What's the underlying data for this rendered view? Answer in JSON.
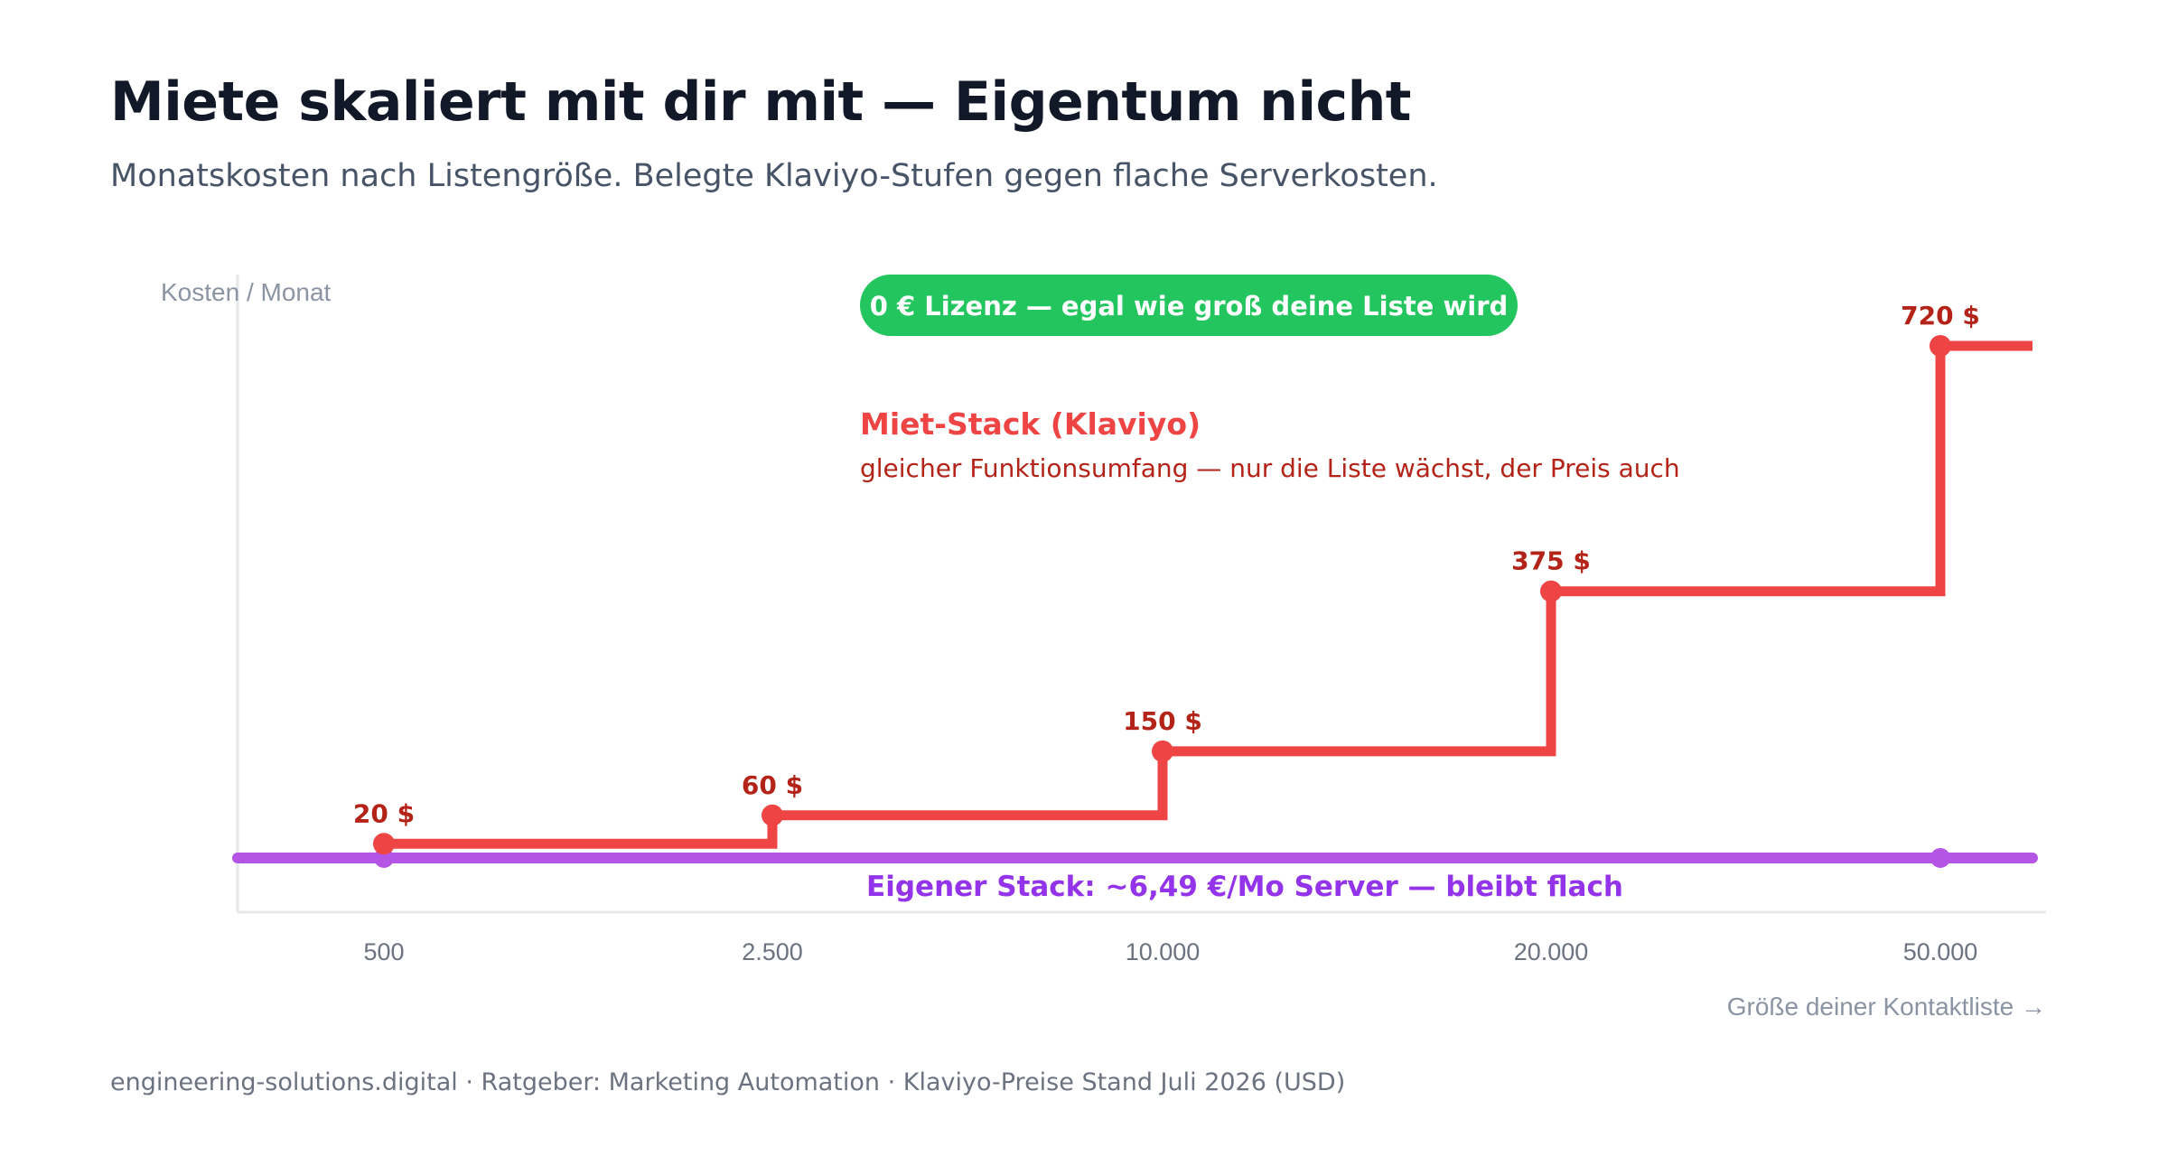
{
  "header": {
    "title": "Miete skaliert mit dir mit — Eigentum nicht",
    "subtitle": "Monatskosten nach Listengröße. Belegte Klaviyo-Stufen gegen flache Serverkosten."
  },
  "footer": "engineering-solutions.digital · Ratgeber: Marketing Automation · Klaviyo-Preise Stand Juli 2026 (USD)",
  "badge": {
    "text": "0 € Lizenz — egal wie groß deine Liste wird",
    "color": "#22c55e"
  },
  "annotations": {
    "rent_title": "Miet-Stack (Klaviyo)",
    "rent_subtitle": "gleicher Funktionsumfang — nur die Liste wächst, der Preis auch",
    "own_label": "Eigener Stack: ~6,49 €/Mo Server — bleibt flach"
  },
  "chart_data": {
    "type": "line",
    "ylabel": "Kosten / Monat",
    "xlabel": "Größe deiner Kontaktliste →",
    "categories": [
      "500",
      "2.500",
      "10.000",
      "20.000",
      "50.000"
    ],
    "grid": false,
    "series": [
      {
        "name": "Miet-Stack (Klaviyo)",
        "step": true,
        "color": "#ef4444",
        "label_color": "#b42318",
        "values": [
          20,
          60,
          150,
          375,
          720
        ],
        "labels": [
          "20 $",
          "60 $",
          "150 $",
          "375 $",
          "720 $"
        ]
      },
      {
        "name": "Eigener Stack",
        "step": false,
        "color": "#b455e6",
        "values": [
          6.49,
          6.49,
          6.49,
          6.49,
          6.49
        ],
        "marker_points": [
          "500",
          "50.000"
        ]
      }
    ],
    "ylim": [
      0,
      720
    ]
  }
}
